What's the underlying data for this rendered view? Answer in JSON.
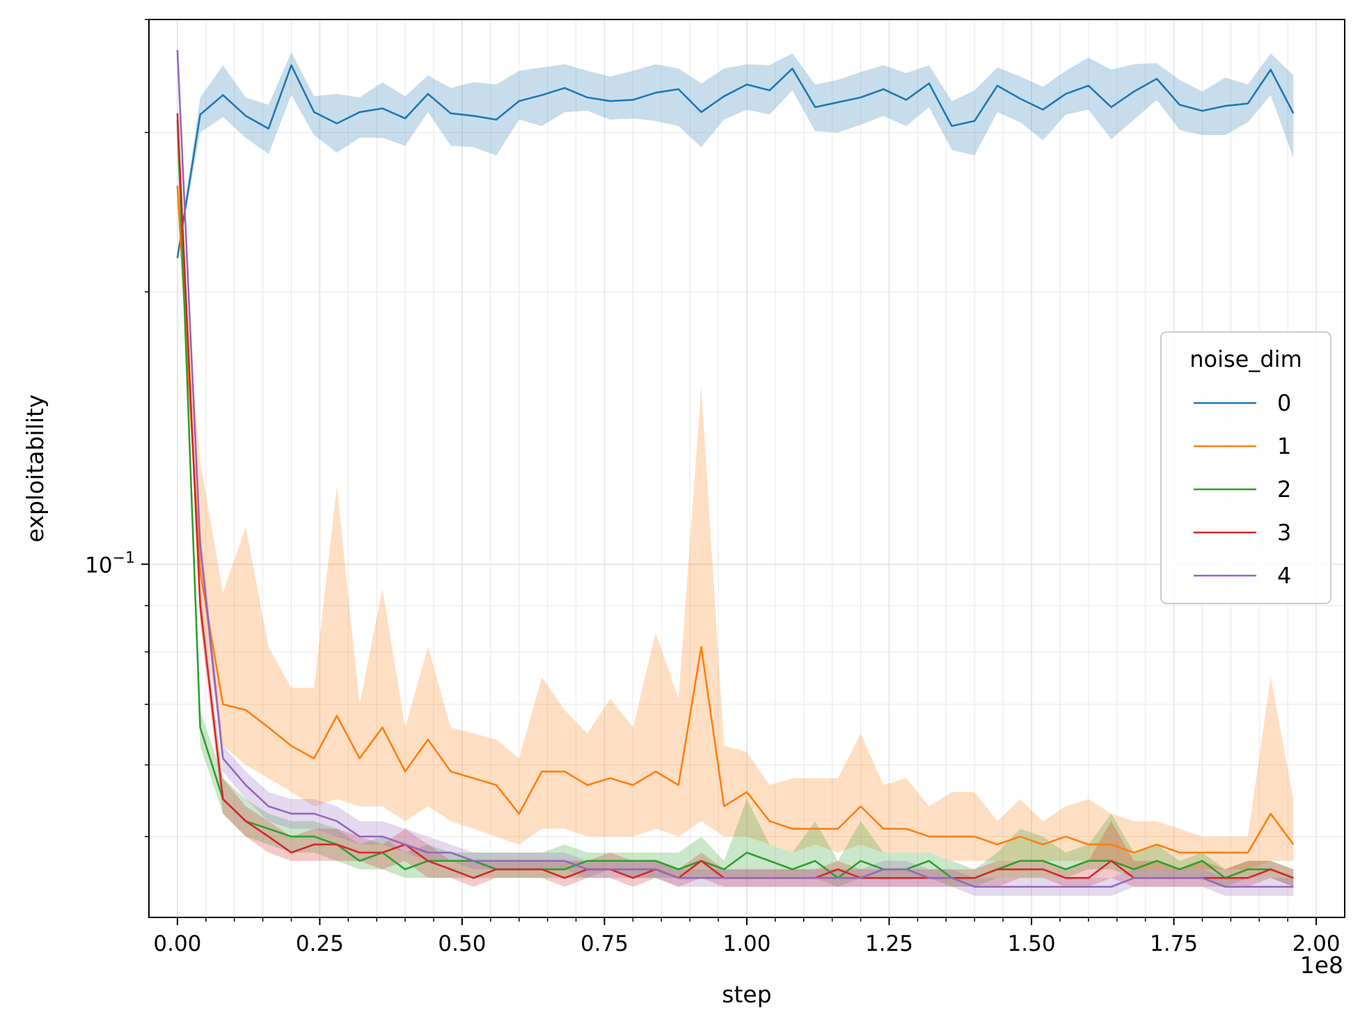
{
  "chart_data": {
    "type": "line",
    "xlabel": "step",
    "ylabel": "exploitability",
    "x_offset_label": "1e8",
    "x_tick_labels": [
      "0.00",
      "0.25",
      "0.50",
      "0.75",
      "1.00",
      "1.25",
      "1.50",
      "1.75",
      "2.00"
    ],
    "x_tick_values": [
      0,
      0.25,
      0.5,
      0.75,
      1.0,
      1.25,
      1.5,
      1.75,
      2.0
    ],
    "xlim": [
      -0.05,
      2.05
    ],
    "y_scale": "log",
    "ylim": [
      0.0407,
      0.4
    ],
    "y_major_tick_label": "10^{-1}",
    "y_major_tick_value": 0.1,
    "y_minor_ticks": [
      0.05,
      0.06,
      0.07,
      0.08,
      0.09,
      0.2,
      0.3,
      0.4
    ],
    "grid": "on (major and minor)",
    "legend": {
      "title": "noise_dim",
      "placement": "center-right",
      "entries": [
        "0",
        "1",
        "2",
        "3",
        "4"
      ]
    },
    "x": [
      0.0,
      0.04,
      0.08,
      0.12,
      0.16,
      0.2,
      0.24,
      0.28,
      0.32,
      0.36,
      0.4,
      0.44,
      0.48,
      0.52,
      0.56,
      0.6,
      0.64,
      0.68,
      0.72,
      0.76,
      0.8,
      0.84,
      0.88,
      0.92,
      0.96,
      1.0,
      1.04,
      1.08,
      1.12,
      1.16,
      1.2,
      1.24,
      1.28,
      1.32,
      1.36,
      1.4,
      1.44,
      1.48,
      1.52,
      1.56,
      1.6,
      1.64,
      1.68,
      1.72,
      1.76,
      1.8,
      1.84,
      1.88,
      1.92,
      1.96
    ],
    "series": [
      {
        "name": "0",
        "color": "#1f77b4",
        "values": [
          0.218,
          0.314,
          0.33,
          0.313,
          0.303,
          0.356,
          0.316,
          0.307,
          0.316,
          0.319,
          0.311,
          0.331,
          0.315,
          0.313,
          0.31,
          0.325,
          0.33,
          0.336,
          0.328,
          0.325,
          0.326,
          0.332,
          0.335,
          0.316,
          0.329,
          0.339,
          0.334,
          0.353,
          0.32,
          0.324,
          0.328,
          0.335,
          0.326,
          0.34,
          0.305,
          0.309,
          0.338,
          0.327,
          0.318,
          0.331,
          0.338,
          0.32,
          0.333,
          0.344,
          0.322,
          0.317,
          0.321,
          0.323,
          0.352,
          0.315
        ],
        "lower": [
          0.218,
          0.3,
          0.312,
          0.296,
          0.284,
          0.33,
          0.298,
          0.285,
          0.296,
          0.296,
          0.29,
          0.316,
          0.29,
          0.289,
          0.283,
          0.31,
          0.305,
          0.316,
          0.317,
          0.31,
          0.311,
          0.309,
          0.305,
          0.289,
          0.31,
          0.318,
          0.314,
          0.334,
          0.301,
          0.3,
          0.306,
          0.313,
          0.305,
          0.32,
          0.287,
          0.283,
          0.316,
          0.308,
          0.294,
          0.314,
          0.318,
          0.295,
          0.31,
          0.326,
          0.302,
          0.298,
          0.298,
          0.308,
          0.33,
          0.281
        ],
        "upper": [
          0.218,
          0.328,
          0.356,
          0.328,
          0.322,
          0.368,
          0.329,
          0.331,
          0.328,
          0.341,
          0.329,
          0.347,
          0.336,
          0.341,
          0.339,
          0.351,
          0.354,
          0.357,
          0.351,
          0.346,
          0.351,
          0.357,
          0.353,
          0.34,
          0.353,
          0.357,
          0.356,
          0.367,
          0.339,
          0.343,
          0.35,
          0.356,
          0.349,
          0.356,
          0.325,
          0.334,
          0.354,
          0.346,
          0.337,
          0.351,
          0.363,
          0.352,
          0.357,
          0.358,
          0.343,
          0.333,
          0.345,
          0.339,
          0.367,
          0.347
        ]
      },
      {
        "name": "1",
        "color": "#ff7f0e",
        "values": [
          0.262,
          0.098,
          0.07,
          0.069,
          0.066,
          0.063,
          0.061,
          0.068,
          0.061,
          0.066,
          0.059,
          0.064,
          0.059,
          0.058,
          0.057,
          0.053,
          0.059,
          0.059,
          0.057,
          0.058,
          0.057,
          0.059,
          0.057,
          0.081,
          0.054,
          0.056,
          0.052,
          0.051,
          0.051,
          0.051,
          0.054,
          0.051,
          0.051,
          0.05,
          0.05,
          0.05,
          0.049,
          0.05,
          0.049,
          0.05,
          0.049,
          0.049,
          0.048,
          0.049,
          0.048,
          0.048,
          0.048,
          0.048,
          0.053,
          0.049
        ],
        "lower": [
          0.262,
          0.09,
          0.063,
          0.06,
          0.058,
          0.056,
          0.054,
          0.055,
          0.054,
          0.054,
          0.052,
          0.054,
          0.052,
          0.051,
          0.05,
          0.049,
          0.051,
          0.051,
          0.05,
          0.05,
          0.05,
          0.051,
          0.05,
          0.052,
          0.05,
          0.05,
          0.049,
          0.048,
          0.049,
          0.048,
          0.049,
          0.048,
          0.048,
          0.048,
          0.047,
          0.047,
          0.047,
          0.047,
          0.047,
          0.047,
          0.047,
          0.047,
          0.046,
          0.046,
          0.046,
          0.046,
          0.046,
          0.046,
          0.047,
          0.047
        ],
        "upper": [
          0.262,
          0.13,
          0.093,
          0.11,
          0.081,
          0.073,
          0.073,
          0.122,
          0.07,
          0.094,
          0.066,
          0.081,
          0.066,
          0.065,
          0.064,
          0.061,
          0.075,
          0.069,
          0.065,
          0.071,
          0.066,
          0.084,
          0.071,
          0.157,
          0.063,
          0.062,
          0.057,
          0.058,
          0.058,
          0.058,
          0.065,
          0.057,
          0.058,
          0.054,
          0.056,
          0.056,
          0.052,
          0.055,
          0.052,
          0.054,
          0.055,
          0.053,
          0.052,
          0.052,
          0.051,
          0.05,
          0.05,
          0.05,
          0.075,
          0.055
        ]
      },
      {
        "name": "2",
        "color": "#2ca02c",
        "values": [
          0.31,
          0.066,
          0.055,
          0.052,
          0.051,
          0.05,
          0.05,
          0.049,
          0.047,
          0.048,
          0.046,
          0.047,
          0.047,
          0.047,
          0.046,
          0.046,
          0.046,
          0.046,
          0.047,
          0.047,
          0.047,
          0.047,
          0.046,
          0.047,
          0.046,
          0.048,
          0.047,
          0.046,
          0.047,
          0.045,
          0.047,
          0.046,
          0.046,
          0.047,
          0.045,
          0.045,
          0.046,
          0.047,
          0.047,
          0.046,
          0.047,
          0.047,
          0.046,
          0.047,
          0.046,
          0.047,
          0.045,
          0.046,
          0.046,
          0.045
        ],
        "lower": [
          0.31,
          0.063,
          0.053,
          0.05,
          0.049,
          0.048,
          0.048,
          0.047,
          0.046,
          0.046,
          0.045,
          0.045,
          0.045,
          0.045,
          0.045,
          0.045,
          0.045,
          0.045,
          0.045,
          0.046,
          0.045,
          0.045,
          0.045,
          0.045,
          0.045,
          0.045,
          0.045,
          0.045,
          0.045,
          0.044,
          0.045,
          0.045,
          0.045,
          0.045,
          0.044,
          0.044,
          0.045,
          0.045,
          0.045,
          0.045,
          0.046,
          0.046,
          0.045,
          0.045,
          0.045,
          0.045,
          0.044,
          0.045,
          0.045,
          0.044
        ],
        "upper": [
          0.31,
          0.069,
          0.058,
          0.055,
          0.053,
          0.052,
          0.052,
          0.051,
          0.049,
          0.05,
          0.048,
          0.049,
          0.048,
          0.048,
          0.048,
          0.048,
          0.048,
          0.049,
          0.048,
          0.048,
          0.048,
          0.048,
          0.048,
          0.05,
          0.047,
          0.055,
          0.049,
          0.048,
          0.052,
          0.047,
          0.052,
          0.048,
          0.048,
          0.048,
          0.047,
          0.046,
          0.048,
          0.051,
          0.05,
          0.048,
          0.049,
          0.053,
          0.048,
          0.049,
          0.047,
          0.048,
          0.046,
          0.047,
          0.047,
          0.046
        ]
      },
      {
        "name": "3",
        "color": "#d62728",
        "values": [
          0.315,
          0.09,
          0.055,
          0.052,
          0.05,
          0.048,
          0.049,
          0.049,
          0.048,
          0.048,
          0.049,
          0.047,
          0.046,
          0.045,
          0.046,
          0.046,
          0.046,
          0.045,
          0.046,
          0.046,
          0.045,
          0.046,
          0.045,
          0.047,
          0.045,
          0.045,
          0.045,
          0.045,
          0.045,
          0.046,
          0.045,
          0.045,
          0.045,
          0.045,
          0.045,
          0.045,
          0.046,
          0.046,
          0.046,
          0.045,
          0.045,
          0.047,
          0.045,
          0.045,
          0.045,
          0.045,
          0.045,
          0.045,
          0.046,
          0.045
        ],
        "lower": [
          0.315,
          0.086,
          0.053,
          0.05,
          0.048,
          0.047,
          0.047,
          0.047,
          0.047,
          0.046,
          0.047,
          0.045,
          0.045,
          0.044,
          0.045,
          0.045,
          0.045,
          0.044,
          0.045,
          0.045,
          0.044,
          0.045,
          0.044,
          0.045,
          0.044,
          0.044,
          0.044,
          0.044,
          0.044,
          0.044,
          0.044,
          0.044,
          0.044,
          0.044,
          0.044,
          0.044,
          0.044,
          0.045,
          0.045,
          0.044,
          0.044,
          0.045,
          0.044,
          0.044,
          0.044,
          0.044,
          0.044,
          0.044,
          0.045,
          0.044
        ],
        "upper": [
          0.315,
          0.094,
          0.058,
          0.054,
          0.052,
          0.05,
          0.051,
          0.051,
          0.05,
          0.049,
          0.051,
          0.049,
          0.047,
          0.047,
          0.047,
          0.047,
          0.047,
          0.047,
          0.047,
          0.048,
          0.047,
          0.047,
          0.046,
          0.048,
          0.046,
          0.046,
          0.046,
          0.046,
          0.046,
          0.047,
          0.046,
          0.046,
          0.046,
          0.046,
          0.046,
          0.046,
          0.047,
          0.047,
          0.047,
          0.046,
          0.047,
          0.052,
          0.047,
          0.047,
          0.046,
          0.047,
          0.046,
          0.047,
          0.047,
          0.046
        ]
      },
      {
        "name": "4",
        "color": "#9467bd",
        "values": [
          0.37,
          0.105,
          0.061,
          0.057,
          0.054,
          0.053,
          0.053,
          0.052,
          0.05,
          0.05,
          0.049,
          0.048,
          0.048,
          0.047,
          0.047,
          0.047,
          0.047,
          0.047,
          0.046,
          0.046,
          0.046,
          0.046,
          0.045,
          0.045,
          0.045,
          0.045,
          0.045,
          0.045,
          0.045,
          0.045,
          0.045,
          0.046,
          0.046,
          0.045,
          0.045,
          0.044,
          0.044,
          0.044,
          0.044,
          0.044,
          0.044,
          0.044,
          0.045,
          0.045,
          0.045,
          0.045,
          0.044,
          0.044,
          0.044,
          0.044
        ],
        "lower": [
          0.37,
          0.1,
          0.059,
          0.055,
          0.052,
          0.051,
          0.051,
          0.05,
          0.049,
          0.049,
          0.048,
          0.047,
          0.047,
          0.046,
          0.046,
          0.046,
          0.046,
          0.046,
          0.045,
          0.045,
          0.045,
          0.045,
          0.044,
          0.044,
          0.044,
          0.044,
          0.044,
          0.044,
          0.044,
          0.044,
          0.044,
          0.044,
          0.044,
          0.044,
          0.044,
          0.043,
          0.043,
          0.043,
          0.043,
          0.043,
          0.043,
          0.043,
          0.044,
          0.044,
          0.044,
          0.044,
          0.043,
          0.043,
          0.043,
          0.043
        ],
        "upper": [
          0.37,
          0.11,
          0.063,
          0.059,
          0.056,
          0.055,
          0.055,
          0.054,
          0.052,
          0.052,
          0.051,
          0.05,
          0.049,
          0.048,
          0.048,
          0.048,
          0.048,
          0.048,
          0.047,
          0.047,
          0.047,
          0.047,
          0.046,
          0.046,
          0.046,
          0.046,
          0.046,
          0.046,
          0.046,
          0.046,
          0.046,
          0.047,
          0.047,
          0.046,
          0.046,
          0.045,
          0.045,
          0.045,
          0.045,
          0.045,
          0.045,
          0.045,
          0.046,
          0.046,
          0.046,
          0.046,
          0.045,
          0.045,
          0.045,
          0.045
        ]
      }
    ]
  }
}
